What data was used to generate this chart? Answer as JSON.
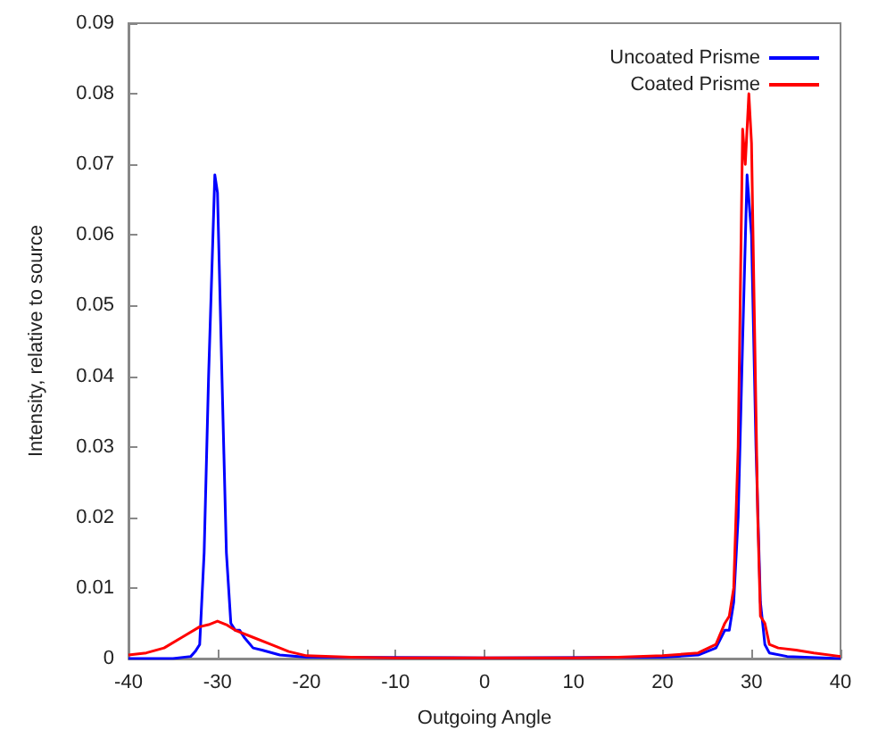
{
  "chart_data": {
    "type": "line",
    "xlabel": "Outgoing Angle",
    "ylabel": "Intensity, relative to source",
    "xlim": [
      -40,
      40
    ],
    "xticks": [
      -40,
      -30,
      -20,
      -10,
      0,
      10,
      20,
      30,
      40
    ],
    "ylim": [
      0,
      0.09
    ],
    "yticks": [
      0,
      0.01,
      0.02,
      0.03,
      0.04,
      0.05,
      0.06,
      0.07,
      0.08,
      0.09
    ],
    "grid": false,
    "legend": "top right",
    "marker": "none",
    "line_style": "solid",
    "series": [
      {
        "name": "Uncoated Prisme",
        "color": "#0000ff",
        "x": [
          -40,
          -35,
          -33,
          -32.5,
          -32,
          -31.5,
          -31,
          -30.3,
          -30,
          -29.5,
          -29,
          -28.5,
          -28,
          -27.5,
          -27,
          -26,
          -25,
          -23,
          -20,
          0,
          20,
          24,
          25,
          26,
          27,
          27.5,
          28,
          28.5,
          29,
          29.5,
          30,
          30.5,
          31,
          31.5,
          32,
          34,
          40
        ],
        "values": [
          0,
          0,
          0.0003,
          0.001,
          0.002,
          0.015,
          0.04,
          0.0685,
          0.066,
          0.04,
          0.015,
          0.005,
          0.004,
          0.004,
          0.003,
          0.0015,
          0.0012,
          0.0005,
          0.0002,
          0.0001,
          0.0002,
          0.0005,
          0.001,
          0.0015,
          0.004,
          0.004,
          0.008,
          0.02,
          0.045,
          0.0685,
          0.06,
          0.03,
          0.008,
          0.002,
          0.0008,
          0.0003,
          0
        ]
      },
      {
        "name": "Coated Prisme",
        "color": "#ff0000",
        "x": [
          -40,
          -38,
          -36,
          -34,
          -32,
          -31,
          -30,
          -29,
          -28,
          -26,
          -24,
          -22,
          -20,
          -15,
          -10,
          0,
          10,
          15,
          20,
          24,
          26,
          27,
          27.5,
          28,
          28.5,
          29,
          29.3,
          29.7,
          30,
          30.3,
          30.7,
          31,
          31.5,
          32,
          33,
          35,
          37,
          40
        ],
        "values": [
          0.0005,
          0.0008,
          0.0015,
          0.003,
          0.0045,
          0.0048,
          0.0053,
          0.0048,
          0.004,
          0.003,
          0.002,
          0.001,
          0.0004,
          0.0002,
          0.0001,
          0.0001,
          0.0001,
          0.0002,
          0.0004,
          0.0008,
          0.002,
          0.005,
          0.006,
          0.01,
          0.03,
          0.075,
          0.07,
          0.08,
          0.073,
          0.05,
          0.02,
          0.006,
          0.005,
          0.002,
          0.0015,
          0.0012,
          0.0008,
          0.0003
        ]
      }
    ]
  }
}
